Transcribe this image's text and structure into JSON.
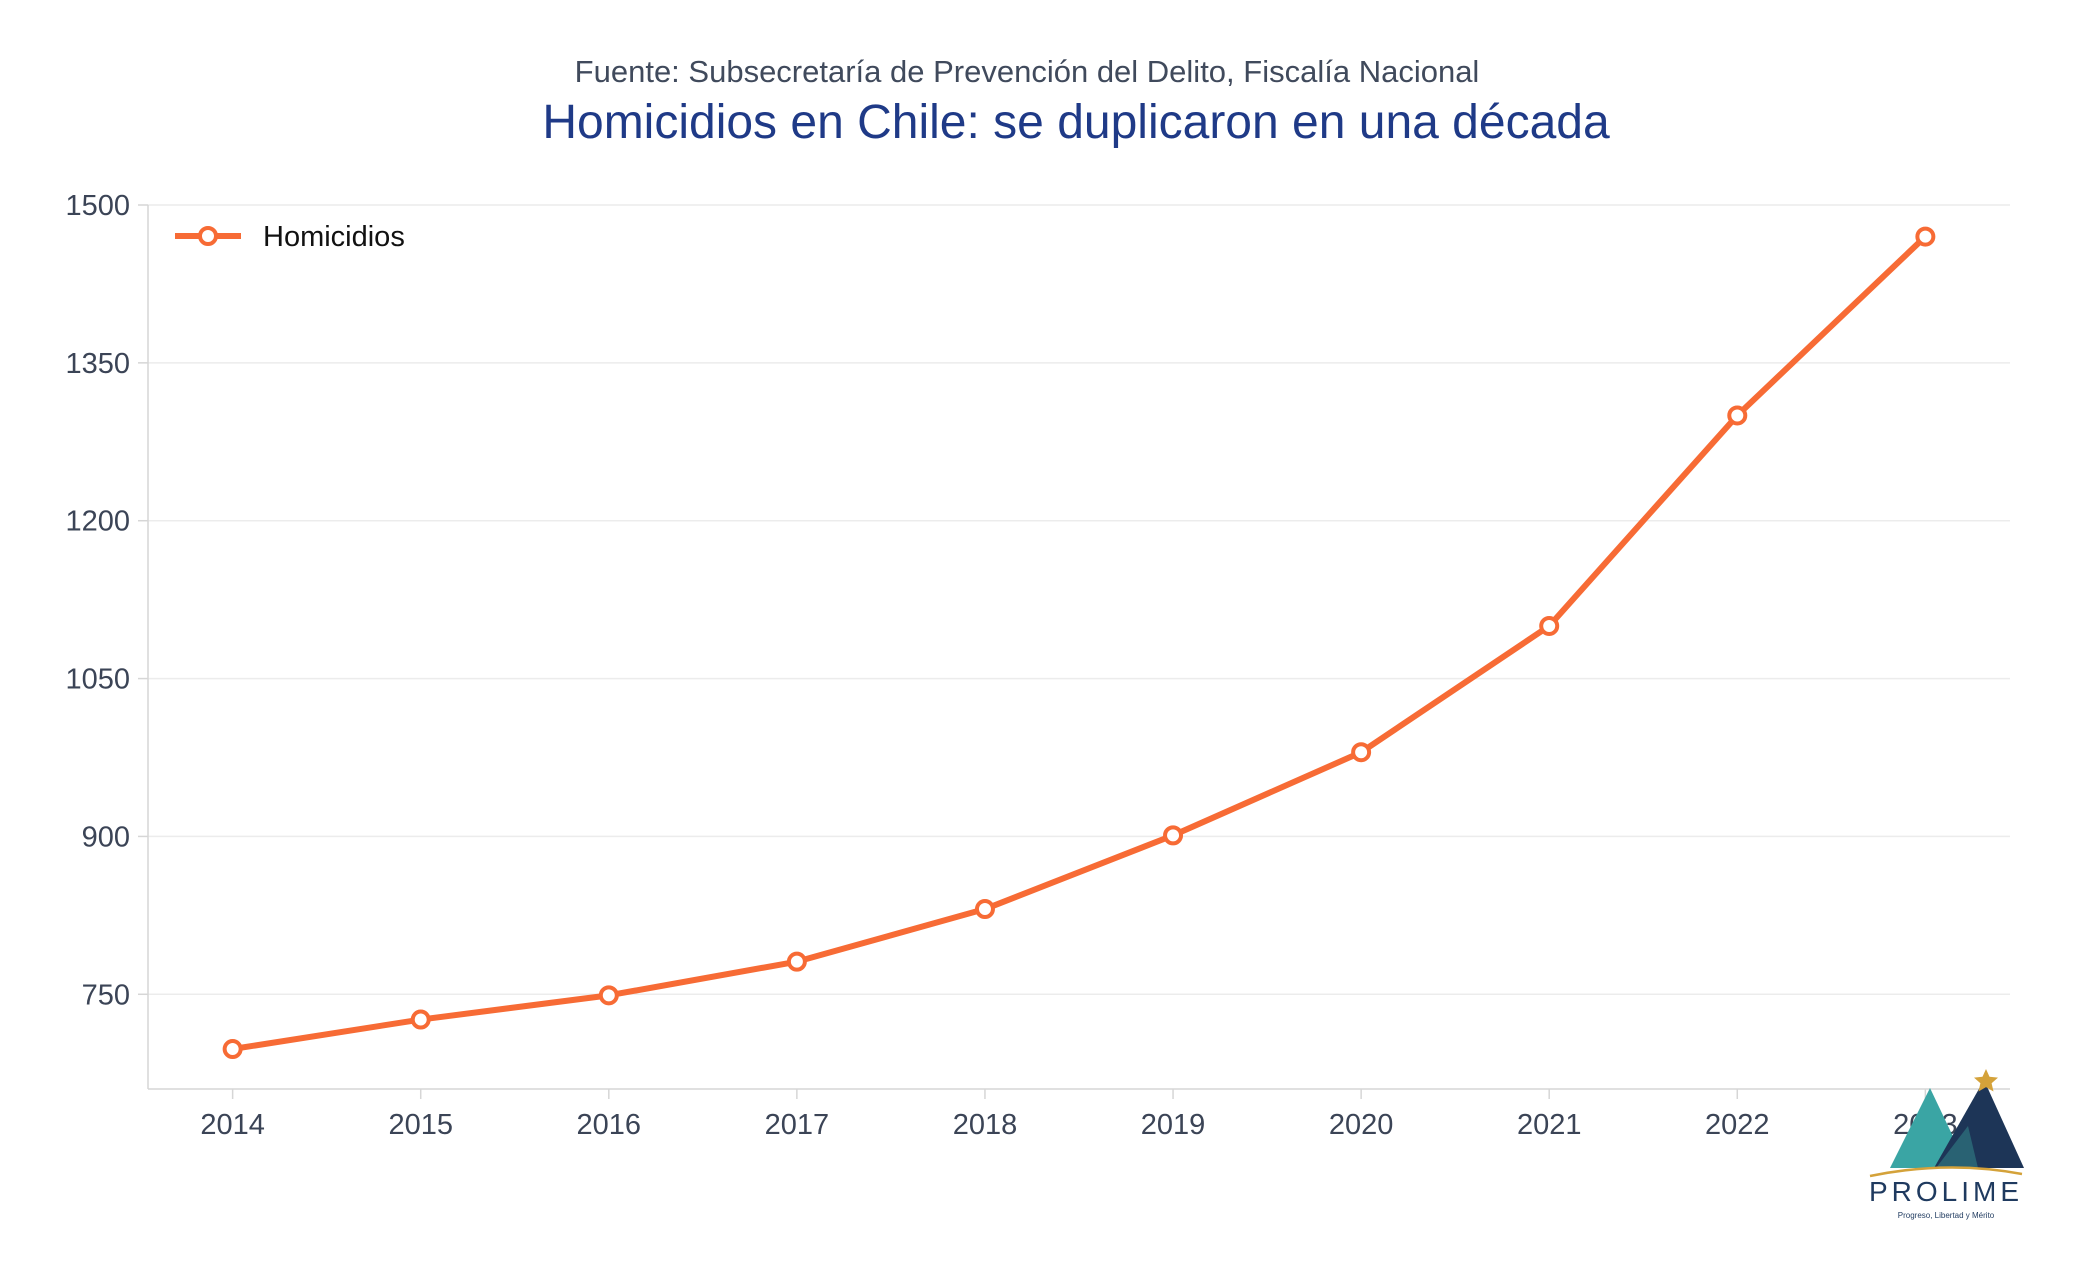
{
  "header": {
    "subtitle": "Fuente: Subsecretaría de Prevención del Delito, Fiscalía Nacional",
    "title": "Homicidios en Chile: se duplicaron en una década"
  },
  "logo": {
    "name": "PROLIME",
    "tagline": "Progreso, Libertad y Mérito",
    "colors": {
      "teal": "#3aa5a4",
      "navy": "#1d3557",
      "gold": "#d4a23a"
    }
  },
  "colors": {
    "series": "#f76b35",
    "grid": "#ececec",
    "axis": "#d6d6d6",
    "title": "#1f3a87"
  },
  "chart_data": {
    "type": "line",
    "title": "Homicidios en Chile: se duplicaron en una década",
    "subtitle": "Fuente: Subsecretaría de Prevención del Delito, Fiscalía Nacional",
    "xlabel": "",
    "ylabel": "",
    "x": [
      2014,
      2015,
      2016,
      2017,
      2018,
      2019,
      2020,
      2021,
      2022,
      2023
    ],
    "series": [
      {
        "name": "Homicidios",
        "values": [
          698,
          726,
          749,
          781,
          831,
          901,
          980,
          1100,
          1300,
          1470
        ]
      }
    ],
    "yticks": [
      750,
      900,
      1050,
      1200,
      1350,
      1500
    ],
    "ylim": [
      660,
      1500
    ],
    "xlim": [
      2013.55,
      2023.45
    ],
    "grid": true,
    "legend_position": "top-left"
  }
}
